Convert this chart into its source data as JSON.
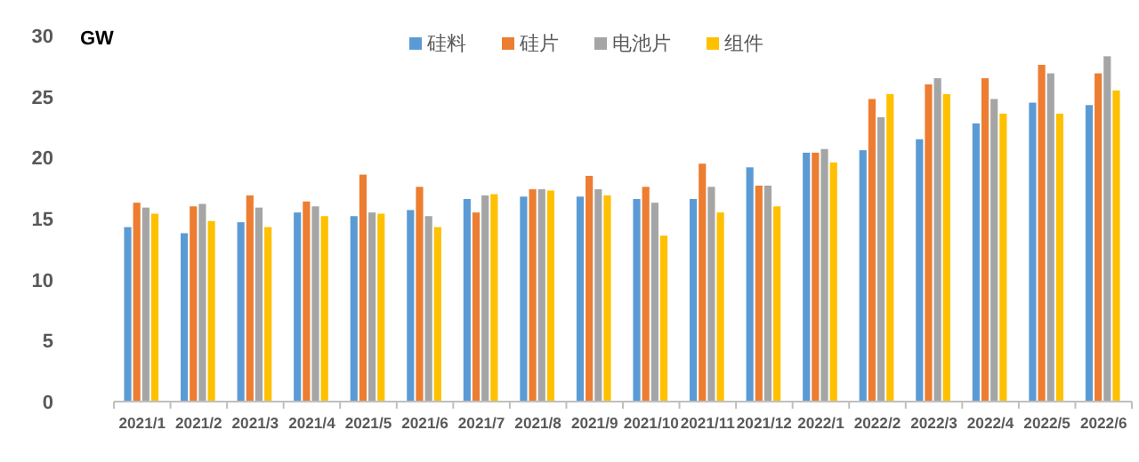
{
  "chart_data": {
    "type": "bar",
    "ylabel": "GW",
    "legend": "top",
    "grid": false,
    "categories": [
      "2021/1",
      "2021/2",
      "2021/3",
      "2021/4",
      "2021/5",
      "2021/6",
      "2021/7",
      "2021/8",
      "2021/9",
      "2021/10",
      "2021/11",
      "2021/12",
      "2022/1",
      "2022/2",
      "2022/3",
      "2022/4",
      "2022/5",
      "2022/6"
    ],
    "ylim": [
      0,
      30
    ],
    "yticks": [
      0,
      5,
      10,
      15,
      20,
      25,
      30
    ],
    "series": [
      {
        "name": "硅料",
        "color": "#5b9bd5",
        "values": [
          14.3,
          13.8,
          14.7,
          15.5,
          15.2,
          15.7,
          16.6,
          16.8,
          16.8,
          16.6,
          16.6,
          19.2,
          20.4,
          20.6,
          21.5,
          22.8,
          24.5,
          24.3
        ]
      },
      {
        "name": "硅片",
        "color": "#ed7d31",
        "values": [
          16.3,
          16.0,
          16.9,
          16.4,
          18.6,
          17.6,
          15.5,
          17.4,
          18.5,
          17.6,
          19.5,
          17.7,
          20.4,
          24.8,
          26.0,
          26.5,
          27.6,
          26.9
        ]
      },
      {
        "name": "电池片",
        "color": "#a5a5a5",
        "values": [
          15.9,
          16.2,
          15.9,
          16.0,
          15.5,
          15.2,
          16.9,
          17.4,
          17.4,
          16.3,
          17.6,
          17.7,
          20.7,
          23.3,
          26.5,
          24.8,
          26.9,
          28.3
        ]
      },
      {
        "name": "组件",
        "color": "#ffc000",
        "values": [
          15.4,
          14.8,
          14.3,
          15.2,
          15.4,
          14.3,
          17.0,
          17.3,
          16.9,
          13.6,
          15.5,
          16.0,
          19.6,
          25.2,
          25.2,
          23.6,
          23.6,
          25.5
        ]
      }
    ]
  }
}
